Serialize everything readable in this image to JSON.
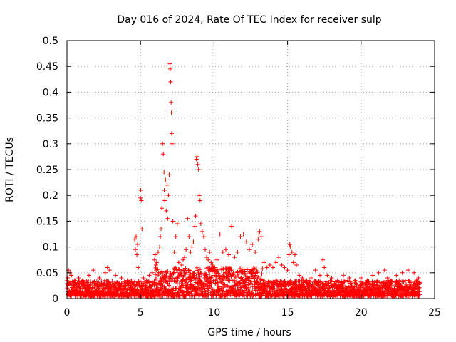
{
  "chart_data": {
    "type": "scatter",
    "title": "Day 016 of 2024, Rate Of TEC Index for receiver sulp",
    "xlabel": "GPS time / hours",
    "ylabel": "ROTI / TECUs",
    "xlim": [
      0,
      25
    ],
    "ylim": [
      0,
      0.5
    ],
    "x_ticks": [
      0,
      5,
      10,
      15,
      20,
      25
    ],
    "x_tick_labels": [
      "0",
      "5",
      "10",
      "15",
      "20",
      "25"
    ],
    "y_ticks": [
      0,
      0.05,
      0.1,
      0.15,
      0.2,
      0.25,
      0.3,
      0.35,
      0.4,
      0.45,
      0.5
    ],
    "y_tick_labels": [
      "0",
      "0.05",
      "0.1",
      "0.15",
      "0.2",
      "0.25",
      "0.3",
      "0.35",
      "0.4",
      "0.45",
      "0.5"
    ],
    "grid": true,
    "marker": "+",
    "color": "#ff0000",
    "series": [
      {
        "name": "ROTI",
        "x": [
          0.05,
          0.1,
          0.15,
          0.2,
          0.3,
          0.5,
          0.8,
          1.1,
          1.5,
          1.8,
          2.2,
          2.6,
          2.75,
          2.9,
          3.3,
          3.7,
          4.1,
          4.4,
          4.6,
          4.65,
          4.7,
          4.75,
          4.8,
          4.85,
          5.0,
          5.02,
          5.05,
          5.1,
          5.2,
          5.4,
          5.6,
          5.8,
          5.95,
          6.0,
          6.05,
          6.1,
          6.2,
          6.3,
          6.35,
          6.4,
          6.45,
          6.5,
          6.55,
          6.6,
          6.62,
          6.65,
          6.7,
          6.75,
          6.8,
          6.85,
          6.9,
          6.95,
          7.0,
          7.02,
          7.05,
          7.08,
          7.1,
          7.12,
          7.15,
          7.2,
          7.3,
          7.4,
          7.5,
          7.6,
          7.7,
          7.8,
          7.9,
          8.0,
          8.1,
          8.2,
          8.3,
          8.4,
          8.5,
          8.6,
          8.7,
          8.75,
          8.8,
          8.85,
          8.9,
          8.95,
          9.0,
          9.05,
          9.1,
          9.2,
          9.3,
          9.4,
          9.5,
          9.6,
          9.7,
          9.8,
          9.9,
          10.0,
          10.2,
          10.4,
          10.6,
          10.8,
          11.0,
          11.2,
          11.4,
          11.6,
          11.8,
          12.0,
          12.2,
          12.4,
          12.6,
          12.8,
          13.0,
          13.05,
          13.1,
          13.2,
          13.4,
          13.6,
          13.8,
          14.0,
          14.2,
          14.4,
          14.6,
          14.8,
          15.0,
          15.1,
          15.15,
          15.2,
          15.3,
          15.4,
          15.5,
          15.6,
          15.8,
          16.0,
          16.3,
          16.6,
          16.9,
          17.2,
          17.4,
          17.5,
          17.7,
          18.0,
          18.4,
          18.8,
          19.2,
          19.6,
          20.0,
          20.4,
          20.8,
          21.2,
          21.6,
          21.8,
          22.0,
          22.4,
          22.8,
          23.2,
          23.6,
          23.9
        ],
        "y": [
          0.04,
          0.055,
          0.03,
          0.05,
          0.045,
          0.035,
          0.04,
          0.035,
          0.045,
          0.055,
          0.04,
          0.05,
          0.06,
          0.055,
          0.045,
          0.04,
          0.035,
          0.03,
          0.115,
          0.095,
          0.12,
          0.085,
          0.105,
          0.06,
          0.195,
          0.21,
          0.19,
          0.135,
          0.04,
          0.035,
          0.045,
          0.05,
          0.075,
          0.085,
          0.065,
          0.07,
          0.09,
          0.1,
          0.12,
          0.135,
          0.175,
          0.3,
          0.28,
          0.245,
          0.21,
          0.19,
          0.23,
          0.17,
          0.22,
          0.155,
          0.2,
          0.24,
          0.455,
          0.445,
          0.42,
          0.38,
          0.36,
          0.32,
          0.3,
          0.15,
          0.09,
          0.12,
          0.145,
          0.07,
          0.05,
          0.065,
          0.075,
          0.08,
          0.095,
          0.155,
          0.12,
          0.09,
          0.1,
          0.11,
          0.14,
          0.16,
          0.27,
          0.275,
          0.26,
          0.25,
          0.2,
          0.19,
          0.145,
          0.13,
          0.12,
          0.095,
          0.08,
          0.075,
          0.09,
          0.07,
          0.065,
          0.06,
          0.075,
          0.125,
          0.09,
          0.095,
          0.085,
          0.14,
          0.08,
          0.09,
          0.12,
          0.125,
          0.11,
          0.095,
          0.105,
          0.09,
          0.115,
          0.125,
          0.13,
          0.12,
          0.07,
          0.06,
          0.065,
          0.06,
          0.07,
          0.08,
          0.065,
          0.06,
          0.055,
          0.085,
          0.105,
          0.1,
          0.09,
          0.07,
          0.085,
          0.065,
          0.045,
          0.04,
          0.035,
          0.04,
          0.055,
          0.045,
          0.075,
          0.06,
          0.045,
          0.04,
          0.035,
          0.045,
          0.04,
          0.035,
          0.04,
          0.035,
          0.045,
          0.05,
          0.055,
          0.04,
          0.035,
          0.045,
          0.05,
          0.055,
          0.05,
          0.04
        ]
      }
    ],
    "noise_band": {
      "x_min": 0,
      "x_max": 24,
      "y_floor": 0.005,
      "y_typical_max": 0.035
    }
  }
}
